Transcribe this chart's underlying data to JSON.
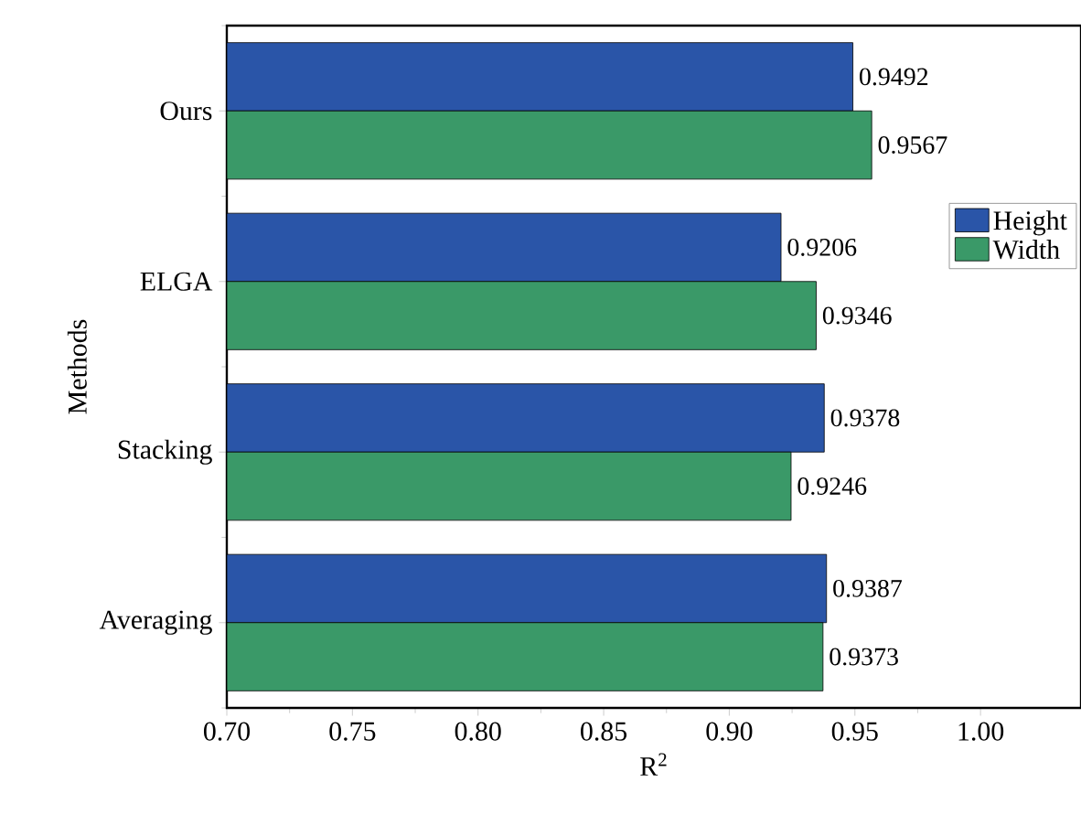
{
  "chart_data": {
    "type": "bar",
    "orientation": "horizontal",
    "xlabel": "R$^{2}$",
    "ylabel": "Methods",
    "categories": [
      "Ours",
      "ELGA",
      "Stacking",
      "Averaging"
    ],
    "series": [
      {
        "name": "Height",
        "color": "#2a55a8",
        "values": [
          0.9492,
          0.9206,
          0.9378,
          0.9387
        ]
      },
      {
        "name": "Width",
        "color": "#3a9968",
        "values": [
          0.9567,
          0.9346,
          0.9246,
          0.9373
        ]
      }
    ],
    "xlim": [
      0.7,
      1.04
    ],
    "xticks": [
      {
        "value": 0.7,
        "label": "0.70"
      },
      0.75,
      {
        "value": 0.8,
        "label": "0.80"
      },
      0.85,
      {
        "value": 0.9,
        "label": "0.90"
      },
      0.95,
      {
        "value": 1.0,
        "label": "1.00"
      }
    ],
    "data_labels": true,
    "legend": "right"
  }
}
